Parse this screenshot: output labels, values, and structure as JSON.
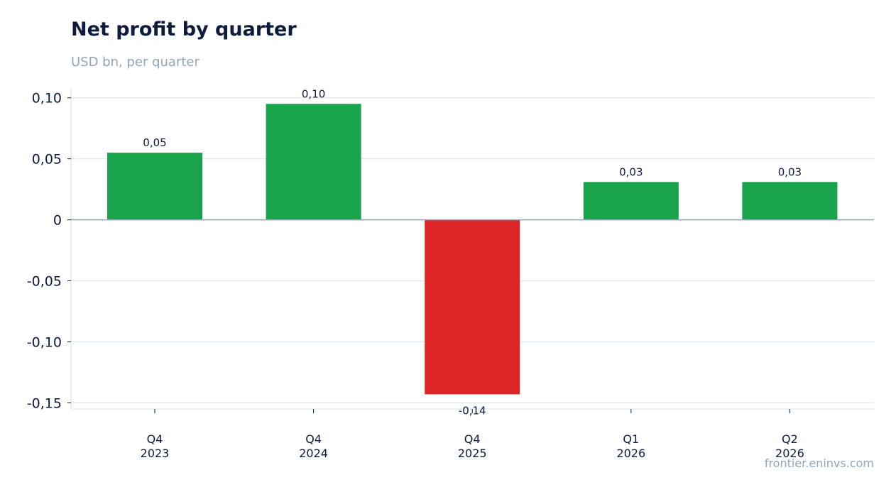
{
  "title": "Net profit by quarter",
  "subtitle": "USD bn, per quarter",
  "source": "frontier.eninvs.com",
  "colors": {
    "positive": "#19a34a",
    "negative": "#dc2626",
    "grid": "#e2e8f0",
    "zero_line": "#94a3b8",
    "text": "#0f1b3d"
  },
  "chart_data": {
    "type": "bar",
    "title": "Net profit by quarter",
    "subtitle": "USD bn, per quarter",
    "xlabel": "",
    "ylabel": "",
    "categories": [
      [
        "Q4",
        "2023"
      ],
      [
        "Q4",
        "2024"
      ],
      [
        "Q4",
        "2025"
      ],
      [
        "Q1",
        "2026"
      ],
      [
        "Q2",
        "2026"
      ]
    ],
    "values": [
      0.055,
      0.095,
      -0.143,
      0.031,
      0.031
    ],
    "data_labels": [
      "0,05",
      "0,10",
      "-0,14",
      "0,03",
      "0,03"
    ],
    "ylim": [
      -0.155,
      0.108
    ],
    "yticks": [
      0.1,
      0.05,
      0,
      -0.05,
      -0.1,
      -0.15
    ],
    "ytick_labels": [
      "0,10",
      "0,05",
      "0",
      "-0,05",
      "-0,10",
      "-0,15"
    ],
    "grid": true,
    "legend": "none"
  }
}
